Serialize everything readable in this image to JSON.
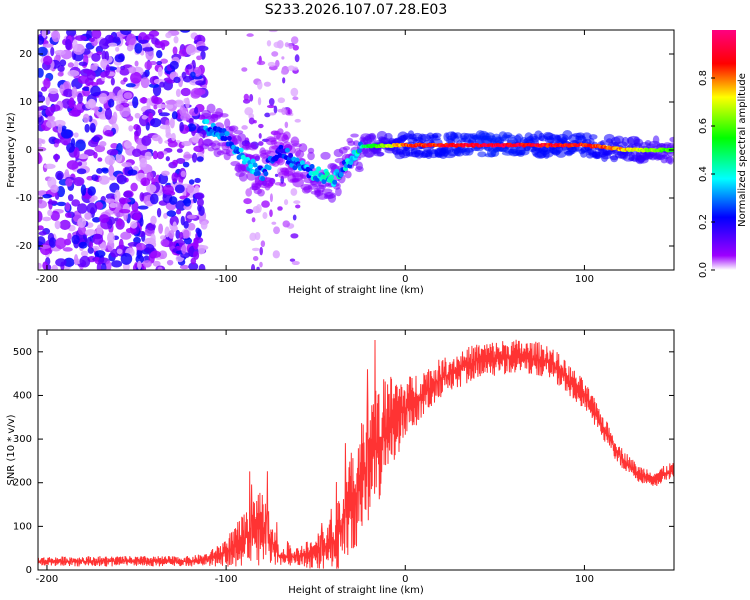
{
  "figure_title": "S233.2026.107.07.28.E03",
  "chart_data": [
    {
      "type": "heatmap",
      "title": "S233.2026.107.07.28.E03",
      "xlabel": "Height of straight line (km)",
      "ylabel": "Frequency (Hz)",
      "xlim": [
        -205,
        150
      ],
      "ylim": [
        -25,
        25
      ],
      "xticks": [
        -200,
        -100,
        0,
        100
      ],
      "xtick_labels": [
        "-200",
        "-100",
        "0",
        "100"
      ],
      "yticks": [
        -20,
        -10,
        0,
        10,
        20
      ],
      "ytick_labels": [
        "-20",
        "-10",
        "0",
        "10",
        "20"
      ],
      "colorbar": {
        "label": "Normalized spectral amplitude",
        "range": [
          0,
          1
        ],
        "ticks": [
          0.0,
          0.2,
          0.4,
          0.6,
          0.8
        ],
        "tick_labels": [
          "0.0",
          "0.2",
          "0.4",
          "0.6",
          "0.8"
        ],
        "colors": [
          "#ffffff",
          "#9d00ff",
          "#0000ff",
          "#00ffff",
          "#00ff00",
          "#ffff00",
          "#ff0000",
          "#ff0080"
        ]
      },
      "ridge": [
        {
          "x": -112,
          "freq": 5,
          "amp": 0.35
        },
        {
          "x": -100,
          "freq": 3,
          "amp": 0.3
        },
        {
          "x": -90,
          "freq": -2,
          "amp": 0.35
        },
        {
          "x": -80,
          "freq": -5,
          "amp": 0.3
        },
        {
          "x": -70,
          "freq": 0,
          "amp": 0.25
        },
        {
          "x": -60,
          "freq": -3,
          "amp": 0.3
        },
        {
          "x": -50,
          "freq": -5,
          "amp": 0.35
        },
        {
          "x": -40,
          "freq": -6,
          "amp": 0.4
        },
        {
          "x": -32,
          "freq": -3,
          "amp": 0.35
        },
        {
          "x": -25,
          "freq": 0.8,
          "amp": 0.45
        },
        {
          "x": 0,
          "freq": 1,
          "amp": 0.85
        },
        {
          "x": 25,
          "freq": 1,
          "amp": 0.9
        },
        {
          "x": 50,
          "freq": 1,
          "amp": 0.95
        },
        {
          "x": 75,
          "freq": 1,
          "amp": 0.9
        },
        {
          "x": 100,
          "freq": 1,
          "amp": 0.9
        },
        {
          "x": 125,
          "freq": 0,
          "amp": 0.75
        },
        {
          "x": 150,
          "freq": 0,
          "amp": 0.55
        }
      ]
    },
    {
      "type": "line",
      "xlabel": "Height of straight line (km)",
      "ylabel": "SNR (10 * v/v)",
      "xlim": [
        -205,
        150
      ],
      "ylim": [
        0,
        550
      ],
      "xticks": [
        -200,
        -100,
        0,
        100
      ],
      "xtick_labels": [
        "-200",
        "-100",
        "0",
        "100"
      ],
      "yticks": [
        0,
        100,
        200,
        300,
        400,
        500
      ],
      "ytick_labels": [
        "0",
        "100",
        "200",
        "300",
        "400",
        "500"
      ],
      "series": [
        {
          "name": "SNR",
          "color": "#ff3333",
          "x": [
            -205,
            -180,
            -150,
            -120,
            -110,
            -100,
            -90,
            -80,
            -70,
            -60,
            -50,
            -40,
            -30,
            -20,
            -10,
            0,
            20,
            40,
            60,
            80,
            100,
            110,
            120,
            130,
            140,
            150
          ],
          "values": [
            20,
            20,
            20,
            20,
            25,
            40,
            70,
            100,
            30,
            30,
            40,
            60,
            150,
            250,
            330,
            370,
            440,
            480,
            490,
            480,
            400,
            330,
            260,
            220,
            210,
            230
          ],
          "spread": [
            10,
            12,
            12,
            12,
            15,
            35,
            60,
            90,
            20,
            20,
            40,
            70,
            120,
            150,
            120,
            70,
            45,
            40,
            40,
            40,
            35,
            30,
            25,
            20,
            20,
            20
          ]
        }
      ]
    }
  ]
}
